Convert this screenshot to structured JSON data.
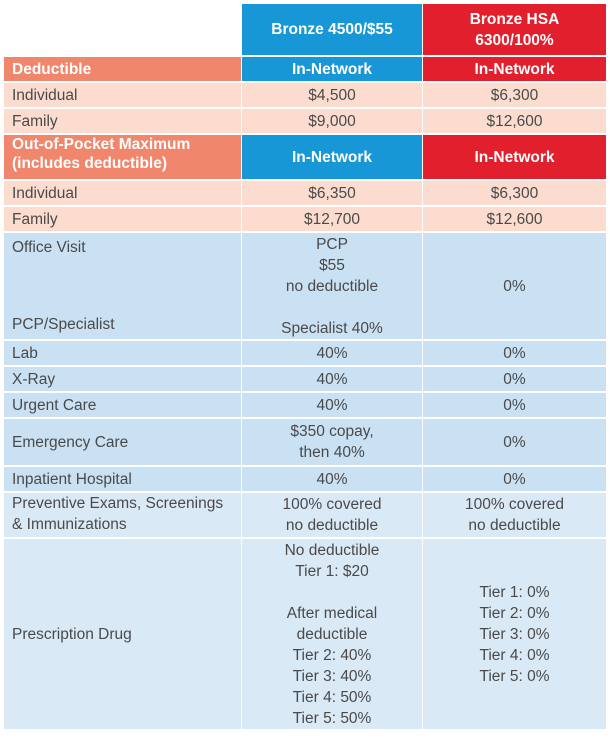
{
  "header": {
    "plan1": "Bronze 4500/$55",
    "plan2_line1": "Bronze HSA",
    "plan2_line2": "6300/100%"
  },
  "deductible": {
    "title": "Deductible",
    "col1": "In-Network",
    "col2": "In-Network",
    "rows": [
      {
        "label": "Individual",
        "v1": "$4,500",
        "v2": "$6,300"
      },
      {
        "label": "Family",
        "v1": "$9,000",
        "v2": "$12,600"
      }
    ]
  },
  "oop": {
    "title_line1": "Out-of-Pocket Maximum",
    "title_line2": "(includes deductible)",
    "col1": "In-Network",
    "col2": "In-Network",
    "rows": [
      {
        "label": "Individual",
        "v1": "$6,350",
        "v2": "$6,300"
      },
      {
        "label": "Family",
        "v1": "$12,700",
        "v2": "$12,600"
      }
    ]
  },
  "office_visit": {
    "label_top": "Office Visit",
    "label_bottom": "PCP/Specialist",
    "v1_lines": [
      "PCP",
      "$55",
      "no deductible",
      "Specialist 40%"
    ],
    "v2": "0%"
  },
  "services": [
    {
      "label": "Lab",
      "v1": "40%",
      "v2": "0%"
    },
    {
      "label": "X-Ray",
      "v1": "40%",
      "v2": "0%"
    },
    {
      "label": "Urgent Care",
      "v1": "40%",
      "v2": "0%"
    },
    {
      "label": "Emergency Care",
      "v1_line1": "$350 copay,",
      "v1_line2": "then 40%",
      "v2": "0%"
    },
    {
      "label": "Inpatient Hospital",
      "v1": "40%",
      "v2": "0%"
    },
    {
      "label_line1": "Preventive Exams, Screenings",
      "label_line2": "& Immunizations",
      "v1_line1": "100% covered",
      "v1_line2": "no deductible",
      "v2_line1": "100% covered",
      "v2_line2": "no deductible"
    }
  ],
  "prescription": {
    "label": "Prescription Drug",
    "v1_top": [
      "No deductible",
      "Tier 1: $20"
    ],
    "v1_bottom": [
      "After medical",
      "deductible",
      "Tier 2: 40%",
      "Tier 3: 40%",
      "Tier 4: 50%",
      "Tier 5: 50%"
    ],
    "v2": [
      "Tier 1: 0%",
      "Tier 2: 0%",
      "Tier 3: 0%",
      "Tier 4: 0%",
      "Tier 5: 0%"
    ]
  }
}
